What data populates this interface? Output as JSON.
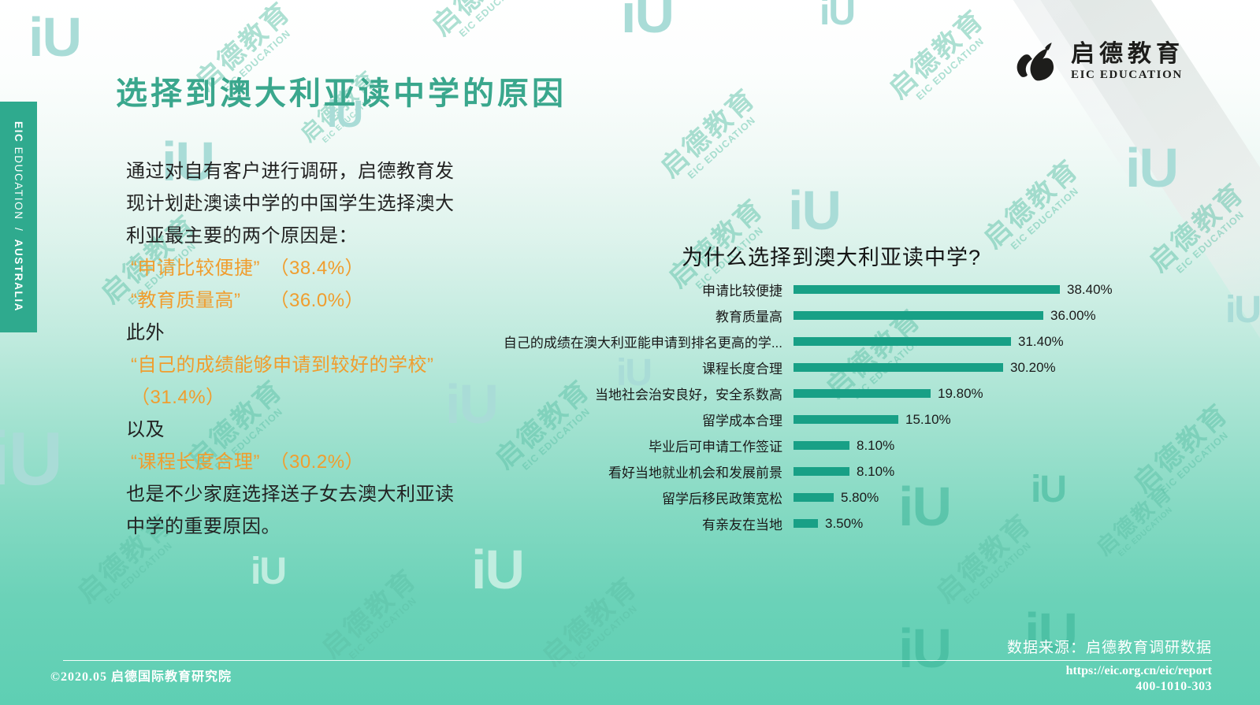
{
  "page_title": "选择到澳大利亚读中学的原因",
  "sidebar": {
    "eic": "EIC",
    "education": "EDUCATION",
    "separator": "/",
    "australia": "AUSTRALIA"
  },
  "logo": {
    "cn": "启德教育",
    "en": "EIC EDUCATION"
  },
  "watermark": {
    "cn": "启德教育",
    "en": "EIC EDUCATION",
    "iu": "iU"
  },
  "paragraph": {
    "lines": [
      {
        "text": "通过对自有客户进行调研，启德教育发",
        "highlight": false
      },
      {
        "text": "现计划赴澳读中学的中国学生选择澳大",
        "highlight": false
      },
      {
        "text": "利亚最主要的两个原因是：",
        "highlight": false
      },
      {
        "text": "“申请比较便捷”　（38.4%）",
        "highlight": true
      },
      {
        "text": "“教育质量高”　　（36.0%）",
        "highlight": true
      },
      {
        "text": "此外",
        "highlight": false
      },
      {
        "text": "“自己的成绩能够申请到较好的学校”",
        "highlight": true
      },
      {
        "text": "（31.4%）",
        "highlight": true
      },
      {
        "text": "以及",
        "highlight": false
      },
      {
        "text": "“课程长度合理”　（30.2%）",
        "highlight": true
      },
      {
        "text": "也是不少家庭选择送子女去澳大利亚读",
        "highlight": false
      },
      {
        "text": "中学的重要原因。",
        "highlight": false
      }
    ]
  },
  "chart_data": {
    "type": "bar",
    "orientation": "horizontal",
    "title": "为什么选择到澳大利亚读中学?",
    "categories": [
      "申请比较便捷",
      "教育质量高",
      "自己的成绩在澳大利亚能申请到排名更高的学...",
      "课程长度合理",
      "当地社会治安良好，安全系数高",
      "留学成本合理",
      "毕业后可申请工作签证",
      "看好当地就业机会和发展前景",
      "留学后移民政策宽松",
      "有亲友在当地"
    ],
    "values": [
      38.4,
      36.0,
      31.4,
      30.2,
      19.8,
      15.1,
      8.1,
      8.1,
      5.8,
      3.5
    ],
    "value_labels": [
      "38.40%",
      "36.00%",
      "31.40%",
      "30.20%",
      "19.80%",
      "15.10%",
      "8.10%",
      "8.10%",
      "5.80%",
      "3.50%"
    ],
    "xlim": [
      0,
      40
    ],
    "grid": false,
    "legend": "none",
    "bar_color": "#18a086"
  },
  "footer": {
    "copyright": "©2020.05 启德国际教育研究院",
    "source": "数据来源：启德教育调研数据",
    "url": "https://eic.org.cn/eic/report",
    "phone": "400-1010-303"
  },
  "colors": {
    "title_teal": "#3aa78d",
    "highlight_orange": "#f09d2e",
    "bar_teal": "#18a086",
    "sidebar_teal": "#2faa8e",
    "background_bottom": "#5ecfb3",
    "footer_text": "#ffffff"
  }
}
